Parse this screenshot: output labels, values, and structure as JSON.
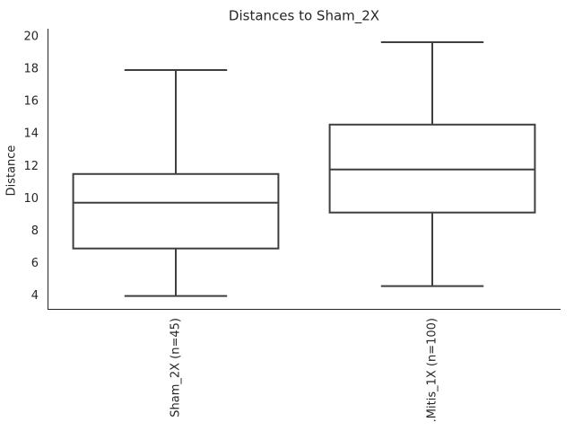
{
  "chart_data": {
    "type": "box",
    "title": "Distances to Sham_2X",
    "y_label": "Distance",
    "categories": [
      "Sham_2X (n=45)",
      ".Mitis_1X (n=100)"
    ],
    "boxes": [
      {
        "min": 4.0,
        "q1": 6.93,
        "median": 9.76,
        "q3": 11.53,
        "max": 17.95
      },
      {
        "min": 4.61,
        "q1": 9.15,
        "median": 11.81,
        "q3": 14.58,
        "max": 19.67
      }
    ],
    "color": "#3f3f3f",
    "fill": "#ffffff",
    "ylim": [
      3.2,
      20.5
    ],
    "yticks": [
      4,
      6,
      8,
      10,
      12,
      14,
      16,
      18,
      20
    ],
    "grid": false
  }
}
